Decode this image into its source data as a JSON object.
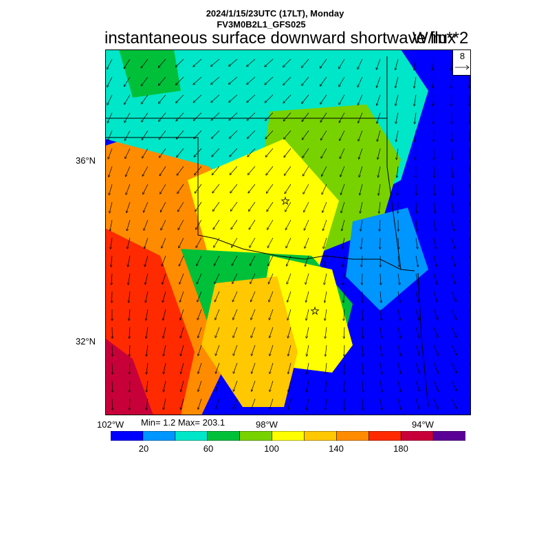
{
  "header": {
    "datetime": "2024/1/15/23UTC (17LT), Monday",
    "model": "FV3M0B2L1_GFS025",
    "title": "instantaneous surface downward shortwave flux",
    "units": "W/m**2"
  },
  "map": {
    "lat_labels": [
      "36°N",
      "32°N"
    ],
    "lon_labels": [
      "102°W",
      "98°W",
      "94°W"
    ],
    "stats": "Min= 1.2 Max= 203.1",
    "wind_reference": "8"
  },
  "colorbar": {
    "colors": [
      "#0000ff",
      "#0096ff",
      "#00e6c8",
      "#00c03a",
      "#78d200",
      "#ffff00",
      "#ffc800",
      "#ff8c00",
      "#ff2a00",
      "#c8003a",
      "#5a0096"
    ],
    "labels": [
      "20",
      "60",
      "100",
      "140",
      "180"
    ]
  }
}
